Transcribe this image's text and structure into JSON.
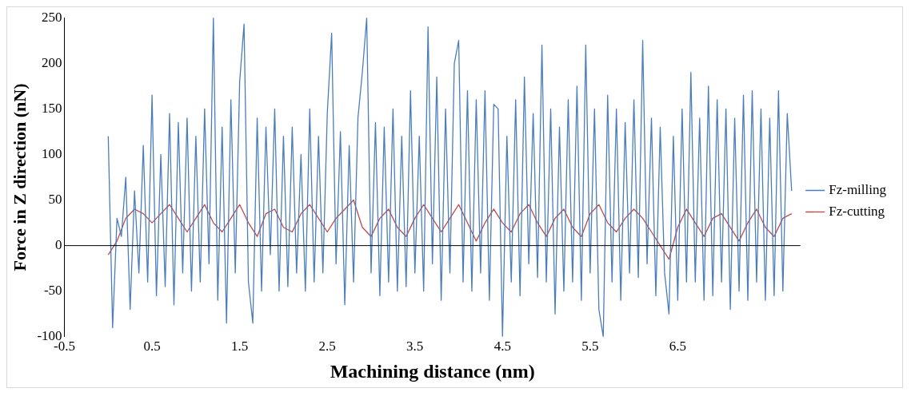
{
  "chart_data": {
    "type": "line",
    "xlabel": "Machining distance (nm)",
    "ylabel": "Force in Z direction (nN)",
    "xlim": [
      -0.5,
      7.9
    ],
    "xticks": [
      -0.5,
      0.5,
      1.5,
      2.5,
      3.5,
      4.5,
      5.5,
      6.5
    ],
    "ylim": [
      -100,
      250
    ],
    "yticks": [
      -100,
      -50,
      0,
      50,
      100,
      150,
      200,
      250
    ],
    "grid": false,
    "ref_lines": [
      {
        "axis": "y",
        "value": 0,
        "color": "#000000"
      }
    ],
    "legend": "right",
    "marker": "none",
    "line_style": "solid",
    "series": [
      {
        "name": "Fz-milling",
        "color": "#4a7ebb",
        "x": [
          0,
          0.05,
          0.1,
          0.15,
          0.2,
          0.25,
          0.3,
          0.35,
          0.4,
          0.45,
          0.5,
          0.55,
          0.6,
          0.65,
          0.7,
          0.75,
          0.8,
          0.85,
          0.9,
          0.95,
          1,
          1.05,
          1.1,
          1.15,
          1.2,
          1.25,
          1.3,
          1.35,
          1.4,
          1.45,
          1.5,
          1.55,
          1.6,
          1.65,
          1.7,
          1.75,
          1.8,
          1.85,
          1.9,
          1.95,
          2,
          2.05,
          2.1,
          2.15,
          2.2,
          2.25,
          2.3,
          2.35,
          2.4,
          2.45,
          2.5,
          2.55,
          2.6,
          2.65,
          2.7,
          2.75,
          2.8,
          2.85,
          2.9,
          2.95,
          3,
          3.05,
          3.1,
          3.15,
          3.2,
          3.25,
          3.3,
          3.35,
          3.4,
          3.45,
          3.5,
          3.55,
          3.6,
          3.65,
          3.7,
          3.75,
          3.8,
          3.85,
          3.9,
          3.95,
          4,
          4.05,
          4.1,
          4.15,
          4.2,
          4.25,
          4.3,
          4.35,
          4.4,
          4.45,
          4.5,
          4.55,
          4.6,
          4.65,
          4.7,
          4.75,
          4.8,
          4.85,
          4.9,
          4.95,
          5,
          5.05,
          5.1,
          5.15,
          5.2,
          5.25,
          5.3,
          5.35,
          5.4,
          5.45,
          5.5,
          5.55,
          5.6,
          5.65,
          5.7,
          5.75,
          5.8,
          5.85,
          5.9,
          5.95,
          6,
          6.05,
          6.1,
          6.15,
          6.2,
          6.25,
          6.3,
          6.35,
          6.4,
          6.45,
          6.5,
          6.55,
          6.6,
          6.65,
          6.7,
          6.75,
          6.8,
          6.85,
          6.9,
          6.95,
          7,
          7.05,
          7.1,
          7.15,
          7.2,
          7.25,
          7.3,
          7.35,
          7.4,
          7.45,
          7.5,
          7.55,
          7.6,
          7.65,
          7.7,
          7.75,
          7.8
        ],
        "values": [
          120,
          -90,
          30,
          10,
          75,
          -70,
          60,
          -30,
          110,
          -40,
          165,
          -55,
          100,
          -45,
          145,
          -65,
          135,
          -30,
          140,
          -50,
          120,
          -40,
          150,
          -20,
          250,
          -60,
          130,
          -85,
          160,
          -30,
          180,
          243,
          -40,
          -85,
          140,
          -50,
          130,
          -10,
          150,
          -50,
          120,
          -45,
          130,
          -30,
          100,
          -50,
          150,
          -40,
          120,
          -30,
          145,
          233,
          -20,
          125,
          -65,
          110,
          -40,
          140,
          190,
          250,
          -30,
          135,
          -55,
          130,
          -40,
          150,
          -50,
          120,
          -45,
          170,
          -30,
          120,
          -50,
          240,
          -20,
          185,
          -60,
          150,
          -30,
          200,
          225,
          -40,
          170,
          -50,
          160,
          -30,
          170,
          -60,
          155,
          150,
          -100,
          120,
          -40,
          160,
          -55,
          185,
          -20,
          145,
          -35,
          220,
          -40,
          150,
          -75,
          130,
          -50,
          160,
          -40,
          175,
          -60,
          220,
          -30,
          150,
          -70,
          -100,
          165,
          -40,
          150,
          -60,
          135,
          -30,
          160,
          -35,
          225,
          -20,
          140,
          -55,
          130,
          -30,
          -75,
          120,
          -60,
          150,
          -40,
          190,
          -40,
          140,
          -60,
          175,
          -55,
          160,
          -40,
          150,
          -70,
          140,
          -50,
          165,
          -60,
          170,
          -40,
          150,
          -60,
          140,
          -55,
          170,
          -50,
          145,
          60
        ]
      },
      {
        "name": "Fz-cutting",
        "color": "#be4b48",
        "x": [
          0,
          0.1,
          0.2,
          0.3,
          0.4,
          0.5,
          0.6,
          0.7,
          0.8,
          0.9,
          1,
          1.1,
          1.2,
          1.3,
          1.4,
          1.5,
          1.6,
          1.7,
          1.8,
          1.9,
          2,
          2.1,
          2.2,
          2.3,
          2.4,
          2.5,
          2.6,
          2.7,
          2.8,
          2.9,
          3,
          3.1,
          3.2,
          3.3,
          3.4,
          3.5,
          3.6,
          3.7,
          3.8,
          3.9,
          4,
          4.1,
          4.2,
          4.3,
          4.4,
          4.5,
          4.6,
          4.7,
          4.8,
          4.9,
          5,
          5.1,
          5.2,
          5.3,
          5.4,
          5.5,
          5.6,
          5.7,
          5.8,
          5.9,
          6,
          6.1,
          6.2,
          6.3,
          6.4,
          6.5,
          6.6,
          6.7,
          6.8,
          6.9,
          7,
          7.1,
          7.2,
          7.3,
          7.4,
          7.5,
          7.6,
          7.7,
          7.8
        ],
        "values": [
          -10,
          5,
          30,
          40,
          35,
          25,
          35,
          45,
          30,
          15,
          30,
          45,
          25,
          15,
          30,
          45,
          25,
          10,
          35,
          40,
          20,
          15,
          35,
          45,
          30,
          15,
          30,
          40,
          50,
          20,
          10,
          30,
          40,
          20,
          10,
          30,
          45,
          30,
          15,
          30,
          45,
          25,
          5,
          25,
          40,
          25,
          15,
          35,
          45,
          25,
          10,
          30,
          40,
          20,
          10,
          35,
          45,
          25,
          15,
          30,
          40,
          30,
          15,
          0,
          -15,
          20,
          40,
          25,
          10,
          30,
          35,
          20,
          5,
          25,
          40,
          20,
          10,
          30,
          35
        ]
      }
    ]
  }
}
